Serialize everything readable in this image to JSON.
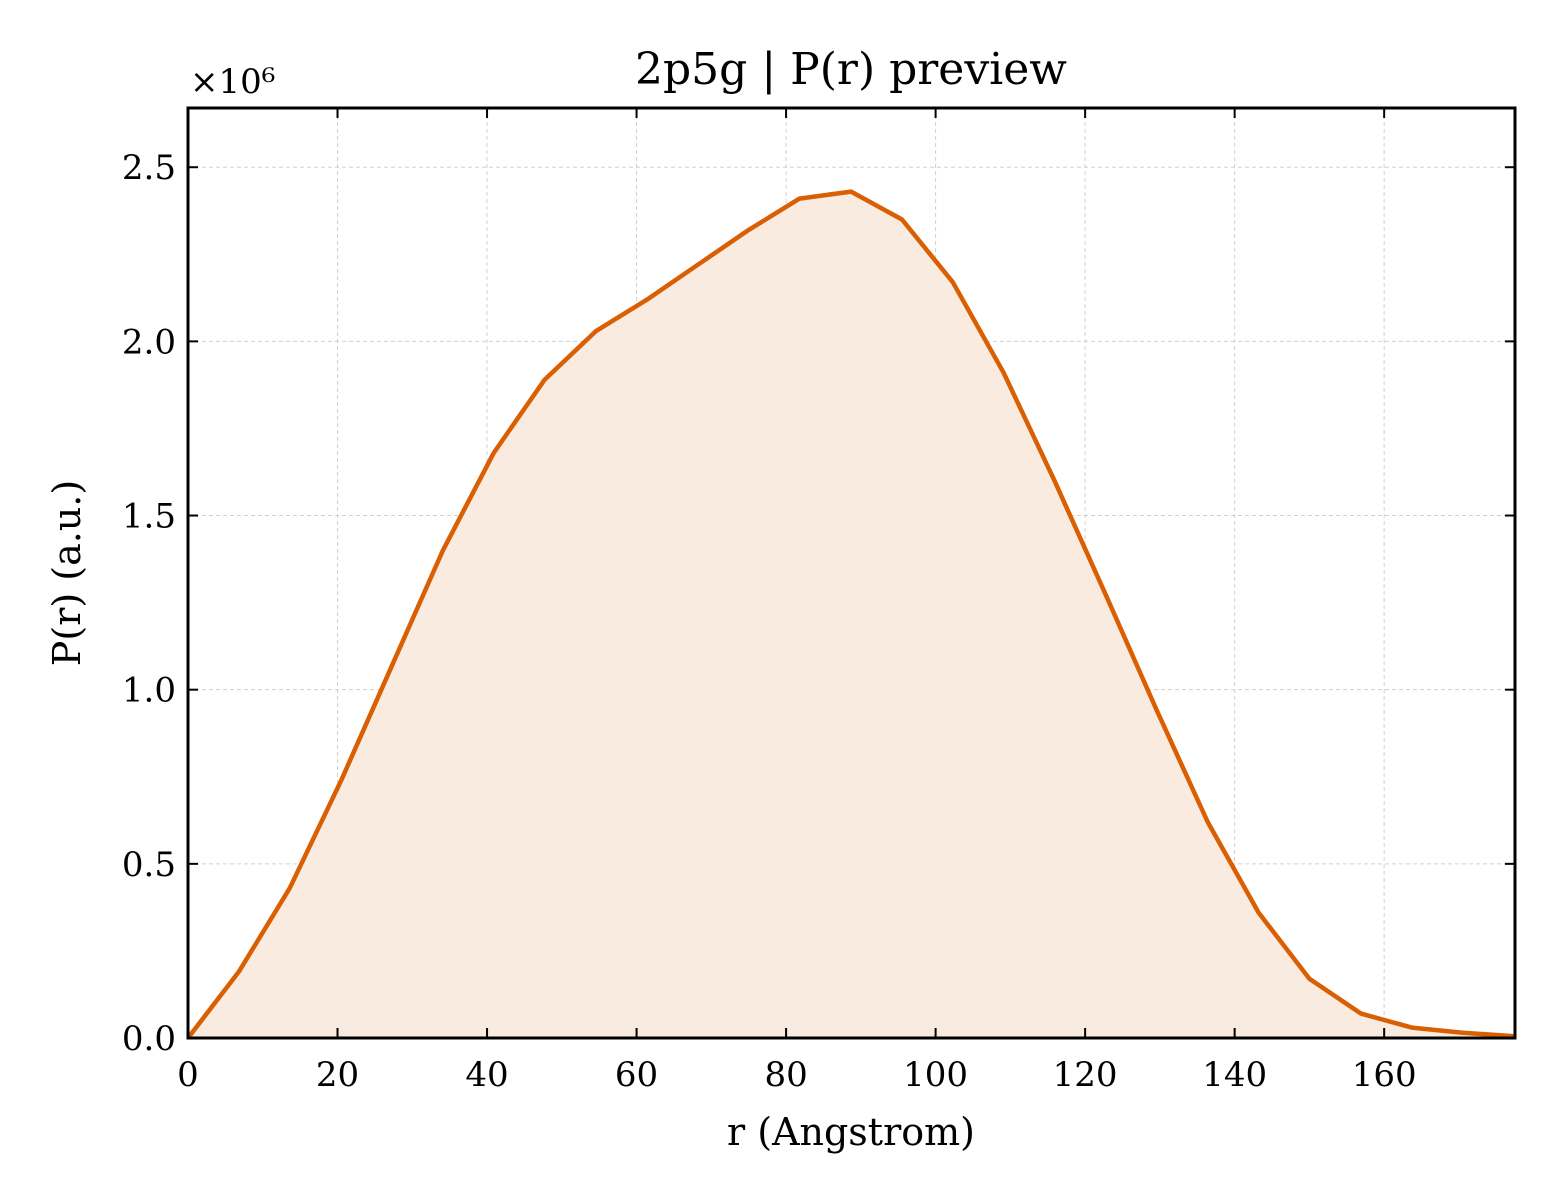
{
  "chart_data": {
    "type": "area",
    "title": "2p5g | P(r) preview",
    "xlabel": "r (Angstrom)",
    "ylabel": "P(r) (a.u.)",
    "y_scale_label": "×10⁶",
    "xlim": [
      0,
      177.5
    ],
    "ylim": [
      0,
      2.67
    ],
    "xticks": [
      0,
      20,
      40,
      60,
      80,
      100,
      120,
      140,
      160
    ],
    "xtick_labels": [
      "0",
      "20",
      "40",
      "60",
      "80",
      "100",
      "120",
      "140",
      "160"
    ],
    "yticks": [
      0,
      0.5,
      1.0,
      1.5,
      2.0,
      2.5
    ],
    "ytick_labels": [
      "0.0",
      "0.5",
      "1.0",
      "1.5",
      "2.0",
      "2.5"
    ],
    "grid": true,
    "colors": {
      "line": "#d95f02",
      "fill": "#f9ebe0"
    },
    "series": [
      {
        "x": [
          0,
          6.8,
          13.6,
          20.5,
          27.3,
          34.1,
          40.9,
          47.7,
          54.6,
          61.4,
          68.2,
          75.0,
          81.8,
          88.7,
          95.5,
          102.3,
          109.1,
          115.9,
          122.8,
          129.6,
          136.4,
          143.2,
          150.0,
          156.9,
          163.7,
          170.5,
          177.5
        ],
        "y": [
          0.0,
          0.19,
          0.43,
          0.74,
          1.07,
          1.4,
          1.68,
          1.89,
          2.03,
          2.12,
          2.22,
          2.32,
          2.41,
          2.43,
          2.35,
          2.17,
          1.91,
          1.6,
          1.27,
          0.94,
          0.62,
          0.36,
          0.17,
          0.07,
          0.03,
          0.015,
          0.005
        ]
      }
    ]
  }
}
